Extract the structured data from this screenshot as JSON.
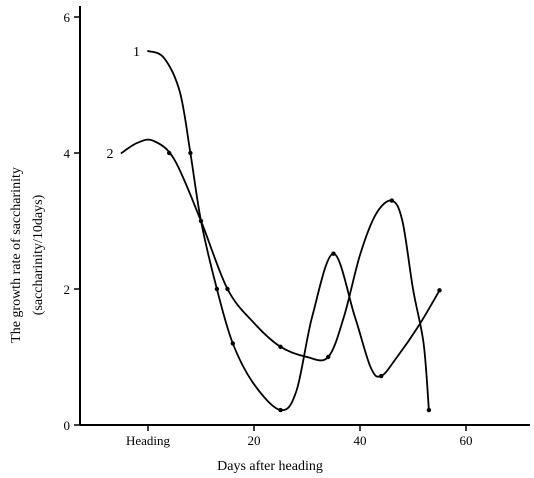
{
  "chart_data": {
    "type": "line",
    "title": "",
    "xlabel": "Days after heading",
    "ylabel": [
      "The growth rate of saccharinity",
      "(saccharinity/10days)"
    ],
    "xlim": [
      -12,
      70
    ],
    "ylim": [
      0,
      6.2
    ],
    "x_ticks": [
      {
        "value": 0,
        "label": "Heading"
      },
      {
        "value": 20,
        "label": "20"
      },
      {
        "value": 40,
        "label": "40"
      },
      {
        "value": 60,
        "label": "60"
      }
    ],
    "y_ticks": [
      {
        "value": 0,
        "label": "0"
      },
      {
        "value": 2,
        "label": "2"
      },
      {
        "value": 4,
        "label": "4"
      },
      {
        "value": 6,
        "label": "6"
      }
    ],
    "grid": false,
    "legend": "none",
    "series": [
      {
        "name": "1",
        "points": [
          {
            "x": 0,
            "y": 5.5
          },
          {
            "x": 3,
            "y": 5.4
          },
          {
            "x": 6,
            "y": 4.9
          },
          {
            "x": 8,
            "y": 4.0
          },
          {
            "x": 10,
            "y": 3.0
          },
          {
            "x": 13,
            "y": 2.0
          },
          {
            "x": 16,
            "y": 1.2
          },
          {
            "x": 20,
            "y": 0.6
          },
          {
            "x": 25,
            "y": 0.22
          },
          {
            "x": 28,
            "y": 0.5
          },
          {
            "x": 31,
            "y": 1.6
          },
          {
            "x": 35,
            "y": 2.52
          },
          {
            "x": 39,
            "y": 1.6
          },
          {
            "x": 42,
            "y": 0.85
          },
          {
            "x": 44,
            "y": 0.72
          },
          {
            "x": 47,
            "y": 1.0
          },
          {
            "x": 51,
            "y": 1.45
          },
          {
            "x": 55,
            "y": 1.98
          }
        ],
        "markers": [
          {
            "x": 8,
            "y": 4.0
          },
          {
            "x": 13,
            "y": 2.0
          },
          {
            "x": 16,
            "y": 1.2
          },
          {
            "x": 25,
            "y": 0.22
          },
          {
            "x": 35,
            "y": 2.52
          },
          {
            "x": 44,
            "y": 0.72
          },
          {
            "x": 55,
            "y": 1.98
          }
        ]
      },
      {
        "name": "2",
        "points": [
          {
            "x": -5,
            "y": 4.0
          },
          {
            "x": -2,
            "y": 4.15
          },
          {
            "x": 1,
            "y": 4.18
          },
          {
            "x": 5,
            "y": 3.9
          },
          {
            "x": 10,
            "y": 3.0
          },
          {
            "x": 15,
            "y": 2.0
          },
          {
            "x": 20,
            "y": 1.5
          },
          {
            "x": 25,
            "y": 1.15
          },
          {
            "x": 30,
            "y": 1.0
          },
          {
            "x": 34,
            "y": 1.0
          },
          {
            "x": 37,
            "y": 1.6
          },
          {
            "x": 40,
            "y": 2.5
          },
          {
            "x": 43,
            "y": 3.1
          },
          {
            "x": 46,
            "y": 3.3
          },
          {
            "x": 48,
            "y": 3.0
          },
          {
            "x": 50,
            "y": 2.0
          },
          {
            "x": 52,
            "y": 1.2
          },
          {
            "x": 53,
            "y": 0.22
          }
        ],
        "markers": [
          {
            "x": 4,
            "y": 4.0
          },
          {
            "x": 10,
            "y": 3.0
          },
          {
            "x": 15,
            "y": 2.0
          },
          {
            "x": 25,
            "y": 1.15
          },
          {
            "x": 34,
            "y": 1.0
          },
          {
            "x": 46,
            "y": 3.3
          },
          {
            "x": 53,
            "y": 0.22
          }
        ]
      }
    ]
  }
}
